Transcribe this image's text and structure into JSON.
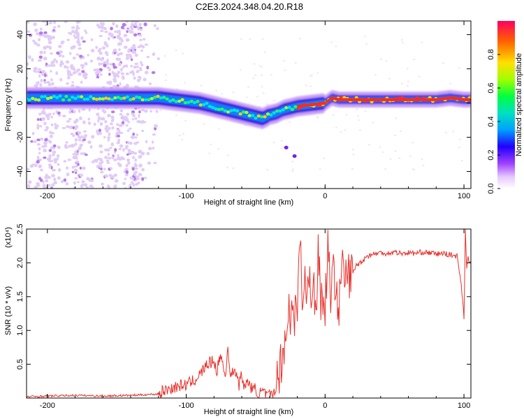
{
  "title": "C2E3.2024.348.04.20.R18",
  "chart_data": [
    {
      "type": "heatmap",
      "xlabel": "Height of straight line (km)",
      "ylabel": "Frequency (Hz)",
      "xlim": [
        -215,
        105
      ],
      "ylim": [
        -50,
        48
      ],
      "x_ticks": [
        -200,
        -100,
        0,
        100
      ],
      "y_ticks": [
        -40,
        -20,
        0,
        20,
        40
      ],
      "grid": false,
      "ridge": {
        "x": [
          -215,
          -200,
          -180,
          -160,
          -140,
          -130,
          -120,
          -110,
          -100,
          -90,
          -80,
          -70,
          -60,
          -50,
          -45,
          -40,
          -35,
          -30,
          -25,
          -20,
          -10,
          0,
          5,
          10,
          20,
          40,
          60,
          80,
          90,
          100,
          105
        ],
        "freq": [
          3,
          3,
          3,
          3,
          3,
          3,
          3,
          2,
          1,
          0,
          -2,
          -4,
          -6,
          -8,
          -9,
          -7,
          -6,
          -4,
          -3,
          -2,
          -1,
          0,
          3,
          2,
          2,
          2,
          2,
          2,
          3,
          2,
          2
        ]
      },
      "colorbar": {
        "label": "Normalized spectral amplitude",
        "range": [
          0,
          1
        ],
        "ticks": [
          0.0,
          0.2,
          0.4,
          0.6,
          0.8
        ]
      }
    },
    {
      "type": "line",
      "xlabel": "Height of straight line (km)",
      "ylabel": "SNR (10 * v/v)",
      "scale_label": "(x10⁴)",
      "xlim": [
        -215,
        105
      ],
      "ylim": [
        0,
        2.5
      ],
      "x_ticks": [
        -200,
        -100,
        0,
        100
      ],
      "y_ticks": [
        0.5,
        1.0,
        1.5,
        2.0,
        2.5
      ],
      "grid": false,
      "series": [
        {
          "color": "#e8302a",
          "x": [
            -215,
            -200,
            -180,
            -160,
            -140,
            -130,
            -120,
            -115,
            -110,
            -105,
            -100,
            -95,
            -90,
            -85,
            -80,
            -78,
            -75,
            -72,
            -70,
            -68,
            -65,
            -62,
            -60,
            -58,
            -55,
            -52,
            -50,
            -48,
            -45,
            -42,
            -40,
            -38,
            -35,
            -33,
            -31,
            -30,
            -28,
            -26,
            -25,
            -23,
            -22,
            -21,
            -20,
            -18,
            -16,
            -15,
            -13,
            -12,
            -10,
            -8,
            -6,
            -5,
            -3,
            -1,
            0,
            2,
            4,
            6,
            8,
            10,
            12,
            14,
            16,
            18,
            20,
            22,
            25,
            28,
            30,
            35,
            40,
            45,
            50,
            55,
            60,
            65,
            70,
            75,
            80,
            85,
            90,
            95,
            98,
            100,
            101,
            102,
            103,
            104,
            105
          ],
          "y": [
            0.02,
            0.03,
            0.04,
            0.03,
            0.04,
            0.05,
            0.06,
            0.12,
            0.15,
            0.18,
            0.2,
            0.25,
            0.35,
            0.5,
            0.55,
            0.4,
            0.65,
            0.3,
            0.75,
            0.3,
            0.45,
            0.2,
            0.35,
            0.15,
            0.25,
            0.1,
            0.15,
            0.05,
            0.1,
            0.02,
            0.05,
            0.02,
            0.2,
            0.4,
            0.6,
            0.8,
            0.9,
            1.4,
            1.0,
            1.6,
            1.1,
            1.8,
            1.2,
            2.4,
            1.2,
            1.8,
            1.4,
            2.0,
            1.35,
            1.6,
            1.3,
            2.35,
            1.5,
            1.45,
            1.3,
            2.3,
            1.55,
            1.8,
            1.75,
            1.2,
            2.1,
            1.65,
            1.9,
            1.8,
            1.85,
            1.95,
            2.0,
            2.05,
            2.1,
            2.13,
            2.15,
            2.14,
            2.16,
            2.14,
            2.15,
            2.14,
            2.16,
            2.15,
            2.13,
            2.14,
            2.12,
            2.1,
            1.7,
            1.2,
            2.5,
            1.9,
            2.1,
            2.0,
            2.0
          ]
        }
      ]
    }
  ]
}
